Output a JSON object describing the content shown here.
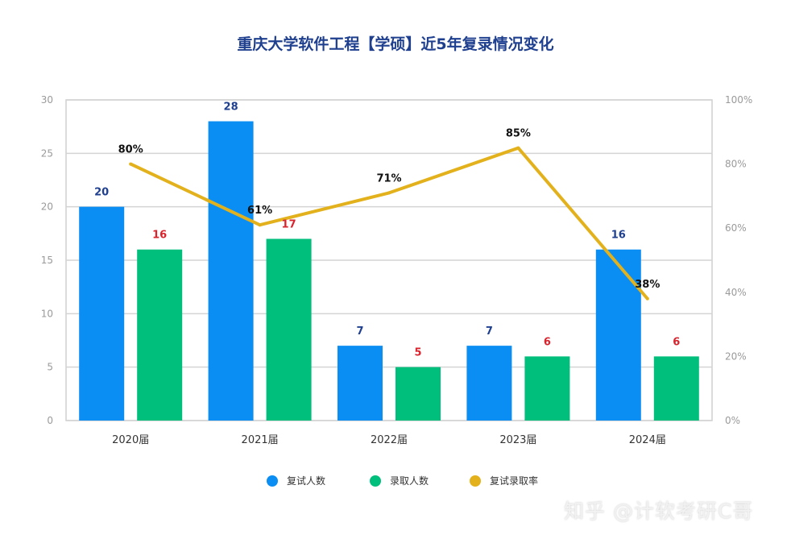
{
  "chart_data": {
    "type": "bar+line",
    "title": "重庆大学软件工程【学硕】近5年复录情况变化",
    "categories": [
      "2020届",
      "2021届",
      "2022届",
      "2023届",
      "2024届"
    ],
    "left_axis": {
      "min": 0,
      "max": 30,
      "ticks": [
        "0",
        "5",
        "10",
        "15",
        "20",
        "25",
        "30"
      ]
    },
    "right_axis": {
      "min": 0,
      "max": 100,
      "ticks": [
        "0%",
        "20%",
        "40%",
        "60%",
        "80%",
        "100%"
      ]
    },
    "grid": true,
    "legend_position": "bottom",
    "series": [
      {
        "name": "复试人数",
        "type": "bar",
        "axis": "left",
        "color": "#0b8ef3",
        "label_color": "#1f3f8f",
        "values": [
          20,
          28,
          7,
          7,
          16
        ],
        "labels": [
          "20",
          "28",
          "7",
          "7",
          "16"
        ]
      },
      {
        "name": "录取人数",
        "type": "bar",
        "axis": "left",
        "color": "#00be7c",
        "label_color": "#d9232d",
        "values": [
          16,
          17,
          5,
          6,
          6
        ],
        "labels": [
          "16",
          "17",
          "5",
          "6",
          "6"
        ]
      },
      {
        "name": "复试录取率",
        "type": "line",
        "axis": "right",
        "color": "#e2b11c",
        "label_color": "#111111",
        "values": [
          80,
          61,
          71,
          85,
          38
        ],
        "labels": [
          "80%",
          "61%",
          "71%",
          "85%",
          "38%"
        ]
      }
    ]
  },
  "watermark": "知乎 @计软考研C哥"
}
